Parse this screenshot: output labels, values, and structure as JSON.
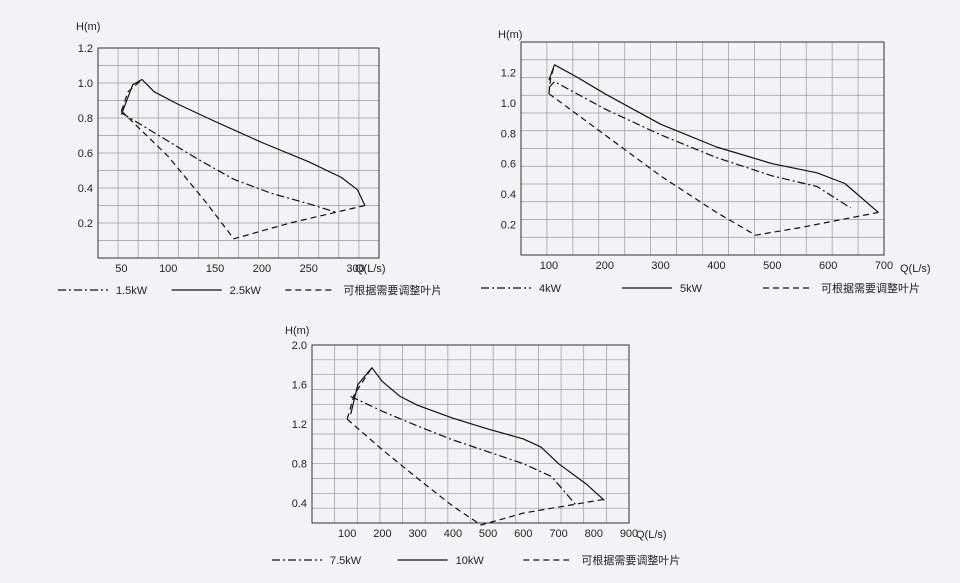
{
  "chart_data": [
    {
      "type": "line",
      "ylabel": "H(m)",
      "xlabel": "Q(L/s)",
      "xlim": [
        25,
        325
      ],
      "ylim": [
        0,
        1.2
      ],
      "x_ticks": [
        50,
        100,
        150,
        200,
        250,
        300
      ],
      "y_ticks": [
        0.2,
        0.4,
        0.6,
        0.8,
        1.0,
        1.2
      ],
      "y_tick_labels": [
        "0.2",
        "0.4",
        "0.6",
        "0.8",
        "1.0",
        "1.2"
      ],
      "grid": true,
      "legend_position": "bottom",
      "series": [
        {
          "name": "1.5kW",
          "style": "dashdot",
          "points": [
            [
              50,
              0.83
            ],
            [
              90,
              0.7
            ],
            [
              130,
              0.57
            ],
            [
              170,
              0.45
            ],
            [
              210,
              0.37
            ],
            [
              250,
              0.31
            ],
            [
              280,
              0.26
            ]
          ]
        },
        {
          "name": "2.5kW",
          "style": "solid",
          "points": [
            [
              50,
              0.82
            ],
            [
              62,
              0.99
            ],
            [
              72,
              1.02
            ],
            [
              85,
              0.95
            ],
            [
              110,
              0.88
            ],
            [
              150,
              0.78
            ],
            [
              200,
              0.66
            ],
            [
              250,
              0.55
            ],
            [
              285,
              0.46
            ],
            [
              302,
              0.39
            ],
            [
              310,
              0.3
            ]
          ]
        },
        {
          "name": "可根据需要调整叶片",
          "style": "dashed",
          "points": [
            [
              50,
              0.84
            ],
            [
              100,
              0.58
            ],
            [
              140,
              0.32
            ],
            [
              170,
              0.11
            ],
            [
              230,
              0.2
            ],
            [
              310,
              0.3
            ]
          ]
        },
        {
          "name": "",
          "style": "dashed",
          "points": [
            [
              50,
              0.84
            ],
            [
              57,
              0.95
            ],
            [
              72,
              1.02
            ]
          ]
        }
      ]
    },
    {
      "type": "line",
      "ylabel": "H(m)",
      "xlabel": "Q(L/s)",
      "xlim": [
        50,
        700
      ],
      "ylim": [
        0,
        1.4
      ],
      "x_ticks": [
        100,
        200,
        300,
        400,
        500,
        600,
        700
      ],
      "y_ticks": [
        0.2,
        0.4,
        0.6,
        0.8,
        1.0,
        1.2
      ],
      "y_tick_labels": [
        "0.2",
        "0.4",
        "0.6",
        "0.8",
        "1.0",
        "1.2"
      ],
      "grid": true,
      "legend_position": "bottom",
      "series": [
        {
          "name": "4kW",
          "style": "dashdot",
          "points": [
            [
              100,
              1.1
            ],
            [
              110,
              1.14
            ],
            [
              200,
              0.96
            ],
            [
              300,
              0.79
            ],
            [
              400,
              0.64
            ],
            [
              500,
              0.52
            ],
            [
              580,
              0.45
            ],
            [
              640,
              0.31
            ]
          ]
        },
        {
          "name": "5kW",
          "style": "solid",
          "points": [
            [
              100,
              1.15
            ],
            [
              110,
              1.25
            ],
            [
              150,
              1.17
            ],
            [
              200,
              1.06
            ],
            [
              300,
              0.86
            ],
            [
              400,
              0.71
            ],
            [
              500,
              0.6
            ],
            [
              580,
              0.54
            ],
            [
              630,
              0.47
            ],
            [
              690,
              0.28
            ]
          ]
        },
        {
          "name": "可根据需要调整叶片",
          "style": "dashed",
          "points": [
            [
              100,
              1.06
            ],
            [
              200,
              0.79
            ],
            [
              300,
              0.52
            ],
            [
              400,
              0.28
            ],
            [
              470,
              0.13
            ],
            [
              550,
              0.18
            ],
            [
              690,
              0.28
            ]
          ]
        },
        {
          "name": "",
          "style": "dashed",
          "points": [
            [
              100,
              1.06
            ],
            [
              103,
              1.16
            ],
            [
              110,
              1.25
            ]
          ]
        }
      ]
    },
    {
      "type": "line",
      "ylabel": "H(m)",
      "xlabel": "Q(L/s)",
      "xlim": [
        0,
        900
      ],
      "ylim": [
        0.2,
        2.0
      ],
      "x_ticks": [
        100,
        200,
        300,
        400,
        500,
        600,
        700,
        800,
        900
      ],
      "y_ticks": [
        0.4,
        0.8,
        1.2,
        1.6,
        2.0
      ],
      "y_tick_labels": [
        "0.4",
        "0.8",
        "1.2",
        "1.6",
        "2.0"
      ],
      "grid": true,
      "legend_position": "bottom",
      "series": [
        {
          "name": "7.5kW",
          "style": "dashdot",
          "points": [
            [
              110,
              1.48
            ],
            [
              200,
              1.33
            ],
            [
              300,
              1.18
            ],
            [
              400,
              1.04
            ],
            [
              500,
              0.92
            ],
            [
              600,
              0.8
            ],
            [
              680,
              0.67
            ],
            [
              750,
              0.38
            ]
          ]
        },
        {
          "name": "10kW",
          "style": "solid",
          "points": [
            [
              110,
              1.3
            ],
            [
              130,
              1.6
            ],
            [
              170,
              1.77
            ],
            [
              200,
              1.63
            ],
            [
              250,
              1.48
            ],
            [
              300,
              1.39
            ],
            [
              400,
              1.26
            ],
            [
              500,
              1.15
            ],
            [
              600,
              1.05
            ],
            [
              650,
              0.97
            ],
            [
              700,
              0.8
            ],
            [
              780,
              0.59
            ],
            [
              830,
              0.43
            ]
          ]
        },
        {
          "name": "可根据需要调整叶片",
          "style": "dashed",
          "points": [
            [
              100,
              1.25
            ],
            [
              200,
              0.94
            ],
            [
              300,
              0.65
            ],
            [
              400,
              0.37
            ],
            [
              480,
              0.18
            ],
            [
              600,
              0.3
            ],
            [
              830,
              0.44
            ]
          ]
        },
        {
          "name": "",
          "style": "dashed",
          "points": [
            [
              100,
              1.25
            ],
            [
              120,
              1.5
            ],
            [
              170,
              1.77
            ]
          ]
        }
      ]
    }
  ]
}
